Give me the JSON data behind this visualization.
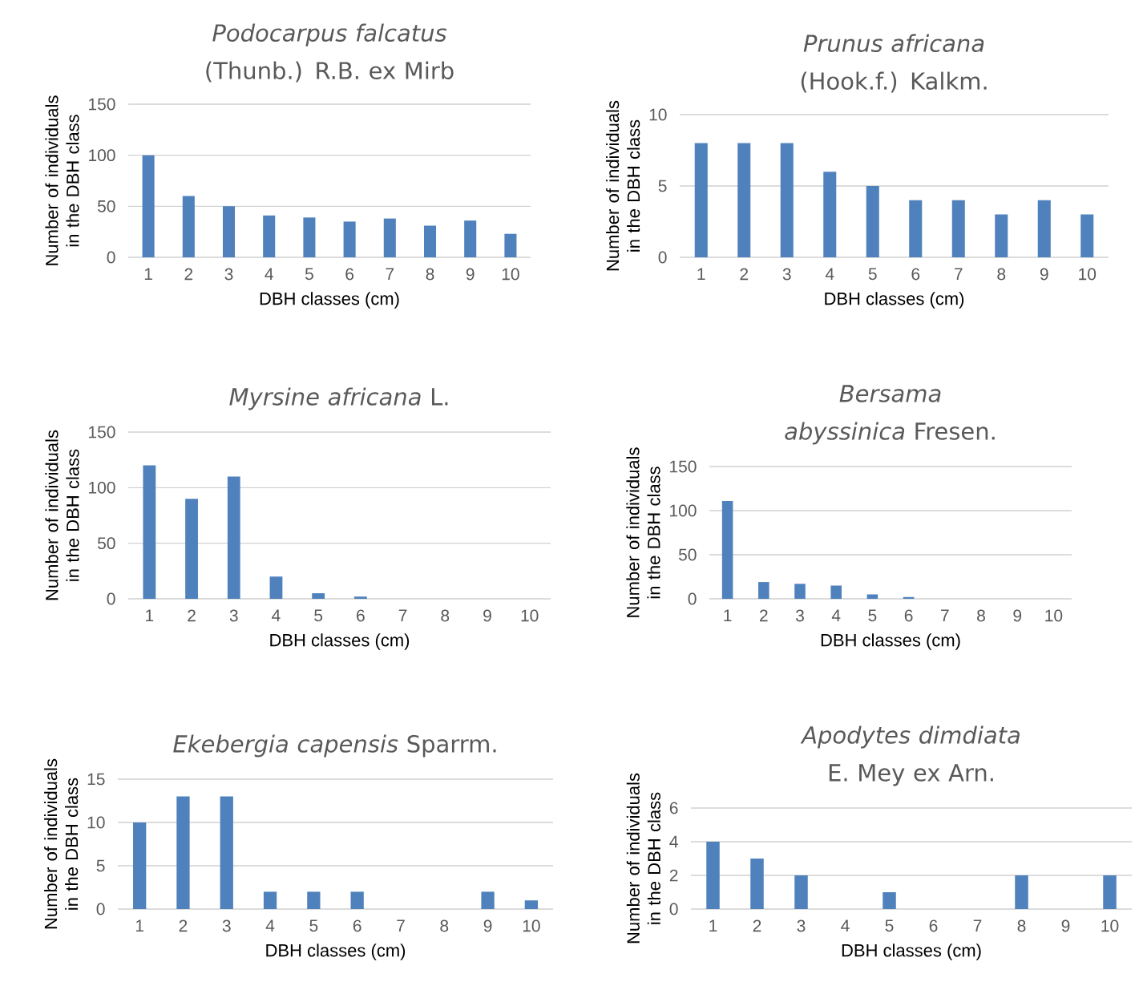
{
  "chart_data": [
    {
      "type": "bar",
      "title": "*Podocarpus falcatus* (Thunb.) R.B. ex Mirb",
      "xlabel": "DBH classes (cm)",
      "ylabel": "Number of individuals in the DBH class",
      "categories": [
        "1",
        "2",
        "3",
        "4",
        "5",
        "6",
        "7",
        "8",
        "9",
        "10"
      ],
      "values": [
        100,
        60,
        50,
        41,
        39,
        35,
        38,
        31,
        36,
        23
      ],
      "color": "#4f81bd",
      "ylim": [
        0,
        150
      ],
      "yticks": [
        0,
        50,
        100,
        150
      ],
      "grid": "y"
    },
    {
      "type": "bar",
      "title": "*Prunus africana* (Hook.f.) Kalkm.",
      "xlabel": "DBH classes (cm)",
      "ylabel": "Number of individuals in the DBH class",
      "categories": [
        "1",
        "2",
        "3",
        "4",
        "5",
        "6",
        "7",
        "8",
        "9",
        "10"
      ],
      "values": [
        8,
        8,
        8,
        6,
        5,
        4,
        4,
        3,
        4,
        3
      ],
      "color": "#4f81bd",
      "ylim": [
        0,
        10
      ],
      "yticks": [
        0,
        5,
        10
      ],
      "grid": "y"
    },
    {
      "type": "bar",
      "title": "*Myrsine africana* L.",
      "xlabel": "DBH classes (cm)",
      "ylabel": "Number of individuals in the DBH class",
      "categories": [
        "1",
        "2",
        "3",
        "4",
        "5",
        "6",
        "7",
        "8",
        "9",
        "10"
      ],
      "values": [
        120,
        90,
        110,
        20,
        5,
        2,
        0,
        0,
        0,
        0
      ],
      "color": "#4f81bd",
      "ylim": [
        0,
        150
      ],
      "yticks": [
        0,
        50,
        100,
        150
      ],
      "grid": "y"
    },
    {
      "type": "bar",
      "title": "*Bersama abyssinica* Fresen.",
      "xlabel": "DBH classes (cm)",
      "ylabel": "Number of individuals in the DBH class",
      "categories": [
        "1",
        "2",
        "3",
        "4",
        "5",
        "6",
        "7",
        "8",
        "9",
        "10"
      ],
      "values": [
        111,
        19,
        17,
        15,
        5,
        2,
        0,
        0,
        0,
        0
      ],
      "color": "#4f81bd",
      "ylim": [
        0,
        150
      ],
      "yticks": [
        0,
        50,
        100,
        150
      ],
      "grid": "y"
    },
    {
      "type": "bar",
      "title": "*Ekebergia capensis* Sparrm.",
      "xlabel": "DBH classes (cm)",
      "ylabel": "Number of individuals in the DBH class",
      "categories": [
        "1",
        "2",
        "3",
        "4",
        "5",
        "6",
        "7",
        "8",
        "9",
        "10"
      ],
      "values": [
        10,
        13,
        13,
        2,
        2,
        2,
        0,
        0,
        2,
        1
      ],
      "color": "#4f81bd",
      "ylim": [
        0,
        15
      ],
      "yticks": [
        0,
        5,
        10,
        15
      ],
      "grid": "y"
    },
    {
      "type": "bar",
      "title": "*Apodytes dimdiata* E. Mey ex Arn.",
      "xlabel": "DBH classes (cm)",
      "ylabel": "Number of individuals in the DBH class",
      "categories": [
        "1",
        "2",
        "3",
        "4",
        "5",
        "6",
        "7",
        "8",
        "9",
        "10"
      ],
      "values": [
        4,
        3,
        2,
        0,
        1,
        0,
        0,
        2,
        0,
        2
      ],
      "color": "#4f81bd",
      "ylim": [
        0,
        6
      ],
      "yticks": [
        0,
        2,
        4,
        6
      ],
      "grid": "y"
    }
  ]
}
